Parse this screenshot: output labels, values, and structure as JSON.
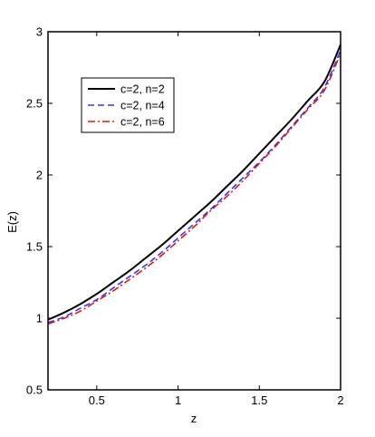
{
  "chart_data": {
    "type": "line",
    "title": "",
    "xlabel": "z",
    "ylabel": "E(z)",
    "xlim": [
      0.2,
      2.0
    ],
    "ylim": [
      0.5,
      3.0
    ],
    "xticks": [
      0.5,
      1,
      1.5,
      2
    ],
    "xtick_labels": [
      "0.5",
      "1",
      "1.5",
      "2"
    ],
    "yticks": [
      0.5,
      1,
      1.5,
      2,
      2.5,
      3
    ],
    "ytick_labels": [
      "0.5",
      "1",
      "1.5",
      "2",
      "2.5",
      "3"
    ],
    "grid": false,
    "legend_position": "top-left",
    "x": [
      0.2,
      0.3,
      0.4,
      0.5,
      0.6,
      0.7,
      0.8,
      0.9,
      1.0,
      1.1,
      1.2,
      1.3,
      1.4,
      1.5,
      1.6,
      1.7,
      1.8,
      1.9,
      2.0
    ],
    "series": [
      {
        "name": "c=2, n=2",
        "color": "#000000",
        "style": "solid",
        "values": [
          0.99,
          1.04,
          1.1,
          1.17,
          1.25,
          1.33,
          1.42,
          1.51,
          1.61,
          1.71,
          1.81,
          1.92,
          2.03,
          2.15,
          2.27,
          2.39,
          2.52,
          2.65,
          2.91
        ]
      },
      {
        "name": "c=2, n=4",
        "color": "#1f3fff",
        "style": "dashed",
        "values": [
          0.97,
          1.01,
          1.07,
          1.13,
          1.21,
          1.29,
          1.37,
          1.46,
          1.56,
          1.66,
          1.76,
          1.87,
          1.98,
          2.09,
          2.21,
          2.34,
          2.47,
          2.61,
          2.87
        ]
      },
      {
        "name": "c=2, n=6",
        "color": "#ee1111",
        "style": "dashdot",
        "values": [
          0.96,
          1.0,
          1.05,
          1.12,
          1.19,
          1.27,
          1.35,
          1.44,
          1.54,
          1.64,
          1.75,
          1.85,
          1.96,
          2.08,
          2.2,
          2.33,
          2.46,
          2.59,
          2.85
        ]
      }
    ]
  }
}
